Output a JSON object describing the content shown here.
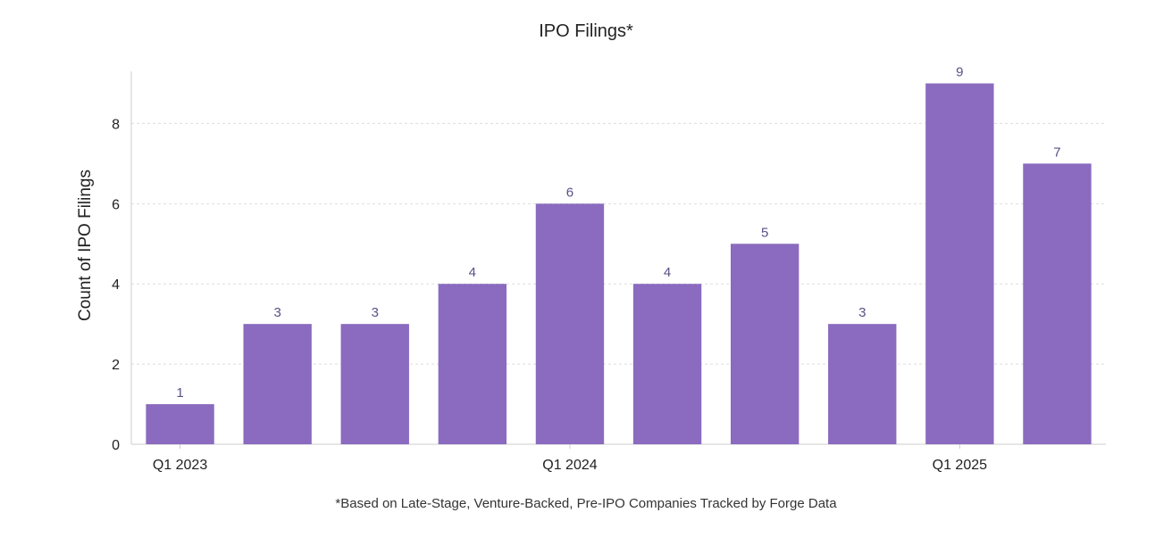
{
  "chart_data": {
    "type": "bar",
    "title": "IPO Filings*",
    "ylabel": "Count of IPO Filings",
    "xlabel": "",
    "categories": [
      "Q1 2023",
      "",
      "",
      "",
      "Q1 2024",
      "",
      "",
      "",
      "Q1 2025",
      ""
    ],
    "values": [
      1,
      3,
      3,
      4,
      6,
      4,
      5,
      3,
      9,
      7
    ],
    "data_labels": [
      "1",
      "3",
      "3",
      "4",
      "6",
      "4",
      "5",
      "3",
      "9",
      "7"
    ],
    "y_ticks": [
      "0",
      "2",
      "4",
      "6",
      "8"
    ],
    "ylim": [
      0,
      9.3
    ],
    "grid": true,
    "legend": "none",
    "colors": {
      "bar": "#8A6BBF",
      "data_label": "#5B4F86",
      "grid": "#DDDDDD",
      "axis": "#CCCCCC",
      "text": "#222222"
    },
    "footnote": "*Based on Late-Stage, Venture-Backed, Pre-IPO Companies Tracked by Forge Data"
  }
}
